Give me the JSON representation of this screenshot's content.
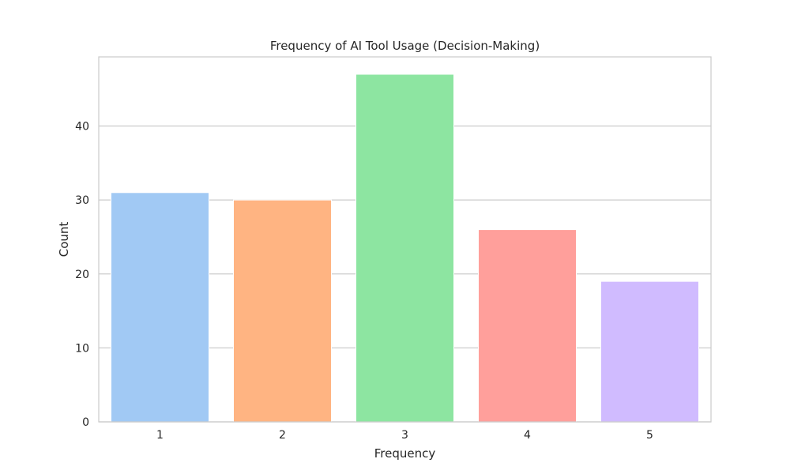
{
  "chart_data": {
    "type": "bar",
    "title": "Frequency of AI Tool Usage (Decision-Making)",
    "xlabel": "Frequency",
    "ylabel": "Count",
    "categories": [
      "1",
      "2",
      "3",
      "4",
      "5"
    ],
    "values": [
      31,
      30,
      47,
      26,
      19
    ],
    "ylim": [
      0,
      49.35
    ],
    "yticks": [
      0,
      10,
      20,
      30,
      40
    ],
    "grid": true,
    "colors": [
      "#a1c9f4",
      "#ffb482",
      "#8de5a1",
      "#ff9f9b",
      "#d0bbff"
    ]
  }
}
